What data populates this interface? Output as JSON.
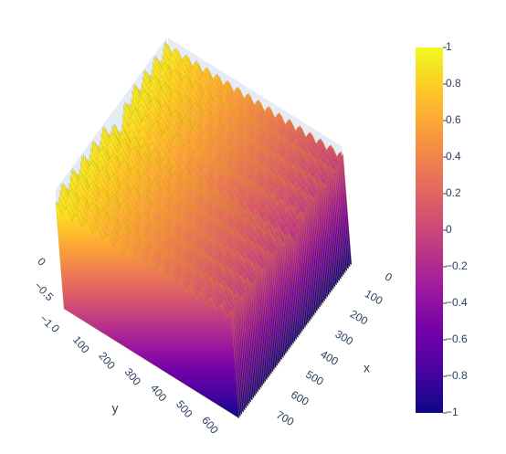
{
  "chart_data": {
    "type": "surface",
    "x_label": "x",
    "y_label": "y",
    "xlim": [
      0,
      760
    ],
    "ylim": [
      0,
      680
    ],
    "zlim": [
      -1,
      1
    ],
    "xticks": [
      0,
      100,
      200,
      300,
      400,
      500,
      600,
      700
    ],
    "yticks": [
      0,
      100,
      200,
      300,
      400,
      500,
      600
    ],
    "zticks": [
      {
        "value": -1,
        "label": "−1"
      },
      {
        "value": -0.5,
        "label": "−0.5"
      },
      0
    ],
    "colorbar_ticks": [
      1,
      0.8,
      0.6,
      0.4,
      0.2,
      0,
      {
        "value": -0.2,
        "label": "−0.2"
      },
      {
        "value": -0.4,
        "label": "−0.4"
      },
      {
        "value": -0.6,
        "label": "−0.6"
      },
      {
        "value": -0.8,
        "label": "−0.8"
      },
      {
        "value": -1,
        "label": "−1"
      }
    ],
    "colorscale": [
      "#0d0887",
      "#46039f",
      "#7201a8",
      "#9c179e",
      "#bd3786",
      "#d8576b",
      "#ed7953",
      "#fb9f3a",
      "#fdca26",
      "#f0f921"
    ]
  }
}
